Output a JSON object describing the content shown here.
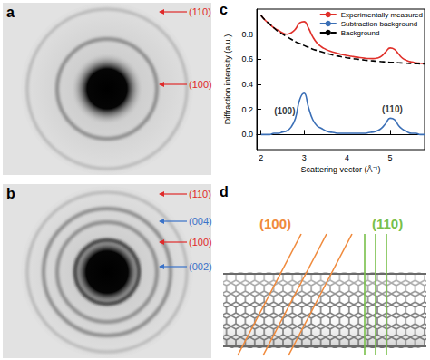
{
  "panels": [
    {
      "label": "a",
      "type": "diffraction_pattern",
      "rings": [
        {
          "text": "(110)",
          "color": "#e02a2a"
        },
        {
          "text": "(100)",
          "color": "#e02a2a"
        }
      ]
    },
    {
      "label": "b",
      "type": "diffraction_pattern",
      "rings": [
        {
          "text": "(110)",
          "color": "#e02a2a"
        },
        {
          "text": "(004)",
          "color": "#3a72c8"
        },
        {
          "text": "(100)",
          "color": "#e02a2a"
        },
        {
          "text": "(002)",
          "color": "#3a72c8"
        }
      ]
    },
    {
      "label": "d",
      "type": "diagram",
      "planes": [
        {
          "text": "(100)",
          "color": "#f08a3c"
        },
        {
          "text": "(110)",
          "color": "#78c04a"
        }
      ]
    }
  ],
  "chart_data": {
    "type": "line",
    "panel_label": "c",
    "x_label": "Scattering vector (Å⁻¹)",
    "y_label": "Diffraction intensity (a.u.)",
    "x": [
      2.0,
      2.1,
      2.2,
      2.3,
      2.4,
      2.5,
      2.6,
      2.7,
      2.8,
      2.9,
      3.0,
      3.1,
      3.2,
      3.3,
      3.4,
      3.5,
      3.6,
      3.7,
      3.8,
      3.9,
      4.0,
      4.1,
      4.2,
      4.3,
      4.4,
      4.5,
      4.6,
      4.7,
      4.8,
      4.9,
      5.0,
      5.1,
      5.2,
      5.3,
      5.4,
      5.5,
      5.6,
      5.7,
      5.8
    ],
    "series": [
      {
        "name": "Experimentally measured",
        "color": "#e0302a",
        "line_style": "solid",
        "values": [
          0.95,
          0.91,
          0.88,
          0.85,
          0.83,
          0.81,
          0.8,
          0.81,
          0.84,
          0.89,
          0.9,
          0.85,
          0.78,
          0.73,
          0.7,
          0.68,
          0.665,
          0.655,
          0.645,
          0.637,
          0.63,
          0.624,
          0.618,
          0.613,
          0.609,
          0.606,
          0.605,
          0.61,
          0.625,
          0.66,
          0.69,
          0.68,
          0.64,
          0.605,
          0.588,
          0.578,
          0.572,
          0.568,
          0.565
        ]
      },
      {
        "name": "Subtraction background",
        "color": "#3b6fb6",
        "line_style": "solid",
        "values": [
          0.0,
          0.0,
          0.0,
          0.01,
          0.01,
          0.02,
          0.03,
          0.06,
          0.13,
          0.28,
          0.33,
          0.22,
          0.12,
          0.07,
          0.05,
          0.03,
          0.02,
          0.015,
          0.01,
          0.01,
          0.01,
          0.01,
          0.01,
          0.01,
          0.01,
          0.015,
          0.02,
          0.03,
          0.05,
          0.09,
          0.13,
          0.12,
          0.07,
          0.04,
          0.02,
          0.01,
          0.01,
          0.0,
          0.0
        ]
      },
      {
        "name": "Background",
        "color": "#000000",
        "line_style": "dashed",
        "values": [
          0.95,
          0.91,
          0.88,
          0.85,
          0.82,
          0.8,
          0.78,
          0.76,
          0.74,
          0.725,
          0.71,
          0.695,
          0.68,
          0.67,
          0.66,
          0.65,
          0.64,
          0.632,
          0.625,
          0.618,
          0.612,
          0.607,
          0.602,
          0.598,
          0.594,
          0.59,
          0.587,
          0.584,
          0.581,
          0.578,
          0.576,
          0.574,
          0.572,
          0.57,
          0.568,
          0.566,
          0.565,
          0.564,
          0.563
        ]
      }
    ],
    "xlim": [
      1.9,
      5.8
    ],
    "ylim": [
      -0.12,
      1.0
    ],
    "xticks": [
      2,
      3,
      4,
      5
    ],
    "yticks": [
      {
        "value": 0,
        "label": "0.0"
      },
      0.2,
      0.4,
      0.6,
      0.8
    ],
    "grid": false,
    "legend": "upper right",
    "marker": "none",
    "annotations": [
      {
        "text": "(100)",
        "x": 2.55,
        "y": 0.19
      },
      {
        "text": "(110)",
        "x": 5.05,
        "y": 0.2
      }
    ]
  }
}
